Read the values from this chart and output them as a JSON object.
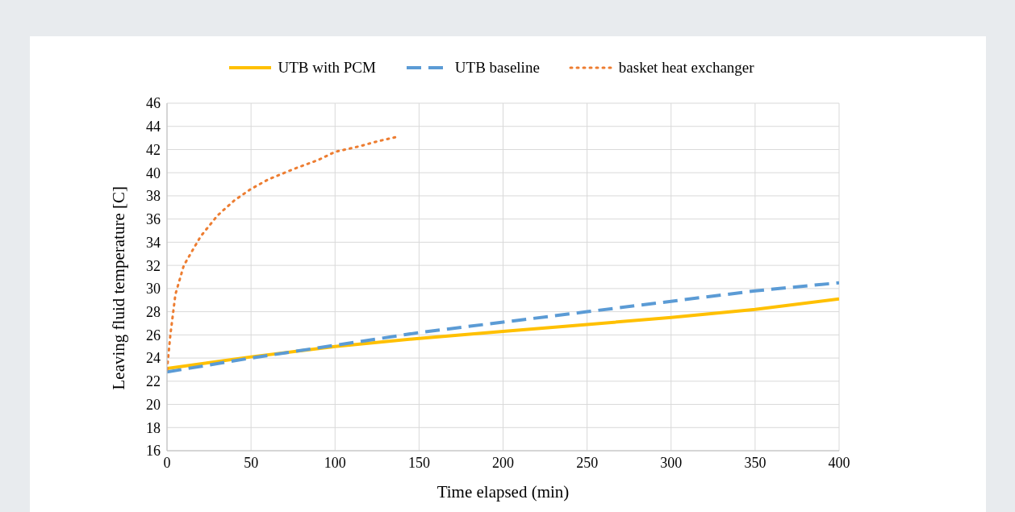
{
  "chart_data": {
    "type": "line",
    "xlabel": "Time elapsed (min)",
    "ylabel": "Leaving fluid temperature [C]",
    "xlim": [
      0,
      400
    ],
    "xticks": [
      0,
      50,
      100,
      150,
      200,
      250,
      300,
      350,
      400
    ],
    "ylim": [
      16,
      46
    ],
    "yticks": [
      16,
      18,
      20,
      22,
      24,
      26,
      28,
      30,
      32,
      34,
      36,
      38,
      40,
      42,
      44,
      46
    ],
    "grid": true,
    "legend": "top",
    "marker": "none",
    "series": [
      {
        "name": "UTB with PCM",
        "color": "#ffc000",
        "line_style": "solid",
        "x": [
          0,
          50,
          100,
          150,
          200,
          250,
          300,
          350,
          400
        ],
        "values": [
          23.1,
          24.1,
          25,
          25.7,
          26.3,
          26.9,
          27.5,
          28.2,
          29.1
        ]
      },
      {
        "name": "UTB baseline",
        "color": "#5b9bd5",
        "line_style": "dashed",
        "x": [
          0,
          50,
          100,
          150,
          200,
          250,
          300,
          350,
          400
        ],
        "values": [
          22.8,
          24,
          25.1,
          26.2,
          27.1,
          28,
          28.9,
          29.8,
          30.5
        ]
      },
      {
        "name": "basket heat exchanger",
        "color": "#ed7d31",
        "line_style": "dotted",
        "x": [
          0,
          2,
          5,
          10,
          20,
          30,
          40,
          50,
          60,
          75,
          90,
          100,
          115,
          125,
          137
        ],
        "values": [
          23,
          26,
          29.5,
          32,
          34.5,
          36.3,
          37.6,
          38.6,
          39.4,
          40.3,
          41.1,
          41.8,
          42.3,
          42.7,
          43.1
        ]
      }
    ]
  }
}
